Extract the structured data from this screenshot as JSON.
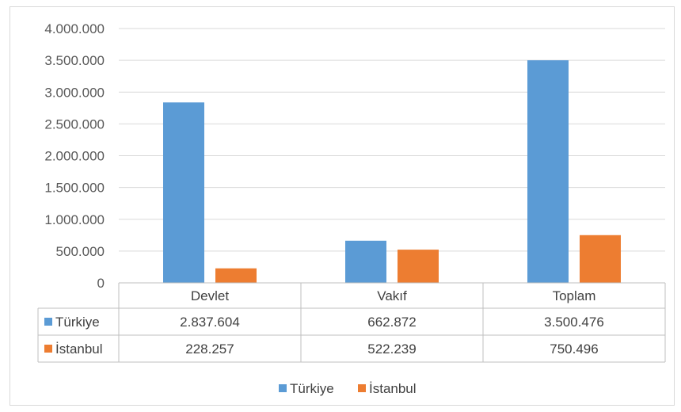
{
  "chart_data": {
    "type": "bar",
    "categories": [
      "Devlet",
      "Vakıf",
      "Toplam"
    ],
    "series": [
      {
        "name": "Türkiye",
        "color": "#5b9bd5",
        "values": [
          2837604,
          662872,
          3500476
        ],
        "labels": [
          "2.837.604",
          "662.872",
          "3.500.476"
        ]
      },
      {
        "name": "İstanbul",
        "color": "#ed7d31",
        "values": [
          228257,
          522239,
          750496
        ],
        "labels": [
          "228.257",
          "522.239",
          "750.496"
        ]
      }
    ],
    "y_ticks": [
      {
        "value": 0,
        "label": "0"
      },
      {
        "value": 500000,
        "label": "500.000"
      },
      {
        "value": 1000000,
        "label": "1.000.000"
      },
      {
        "value": 1500000,
        "label": "1.500.000"
      },
      {
        "value": 2000000,
        "label": "2.000.000"
      },
      {
        "value": 2500000,
        "label": "2.500.000"
      },
      {
        "value": 3000000,
        "label": "3.000.000"
      },
      {
        "value": 3500000,
        "label": "3.500.000"
      },
      {
        "value": 4000000,
        "label": "4.000.000"
      }
    ],
    "ylim": [
      0,
      4000000
    ],
    "grid": true,
    "data_table": true,
    "legend_position": "bottom"
  }
}
